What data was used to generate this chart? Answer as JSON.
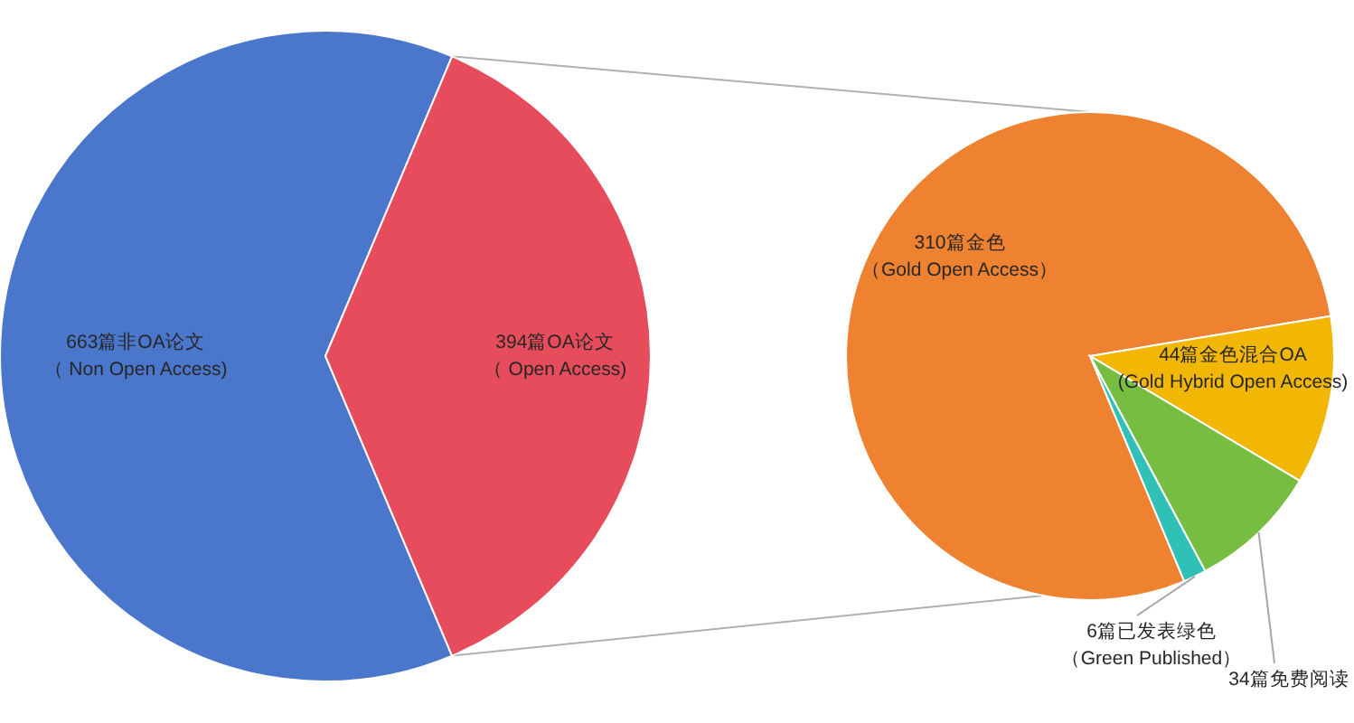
{
  "chart_data": [
    {
      "type": "pie",
      "categories": [
        "663篇非OA论文（ Non Open Access)",
        "394篇OA论文（ Open Access)"
      ],
      "values": [
        663,
        394
      ],
      "colors": [
        "#4a76cb",
        "#e64c5c"
      ]
    },
    {
      "type": "pie",
      "categories": [
        "310篇金色（Gold Open Access）",
        "44篇金色混合OA(Gold Hybrid Open Access)",
        "34篇免费阅读",
        "6篇已发表绿色（Green Published）"
      ],
      "values": [
        310,
        44,
        34,
        6
      ],
      "colors": [
        "#ee8230",
        "#f2b705",
        "#76bd42",
        "#2fc1b6"
      ]
    }
  ]
}
